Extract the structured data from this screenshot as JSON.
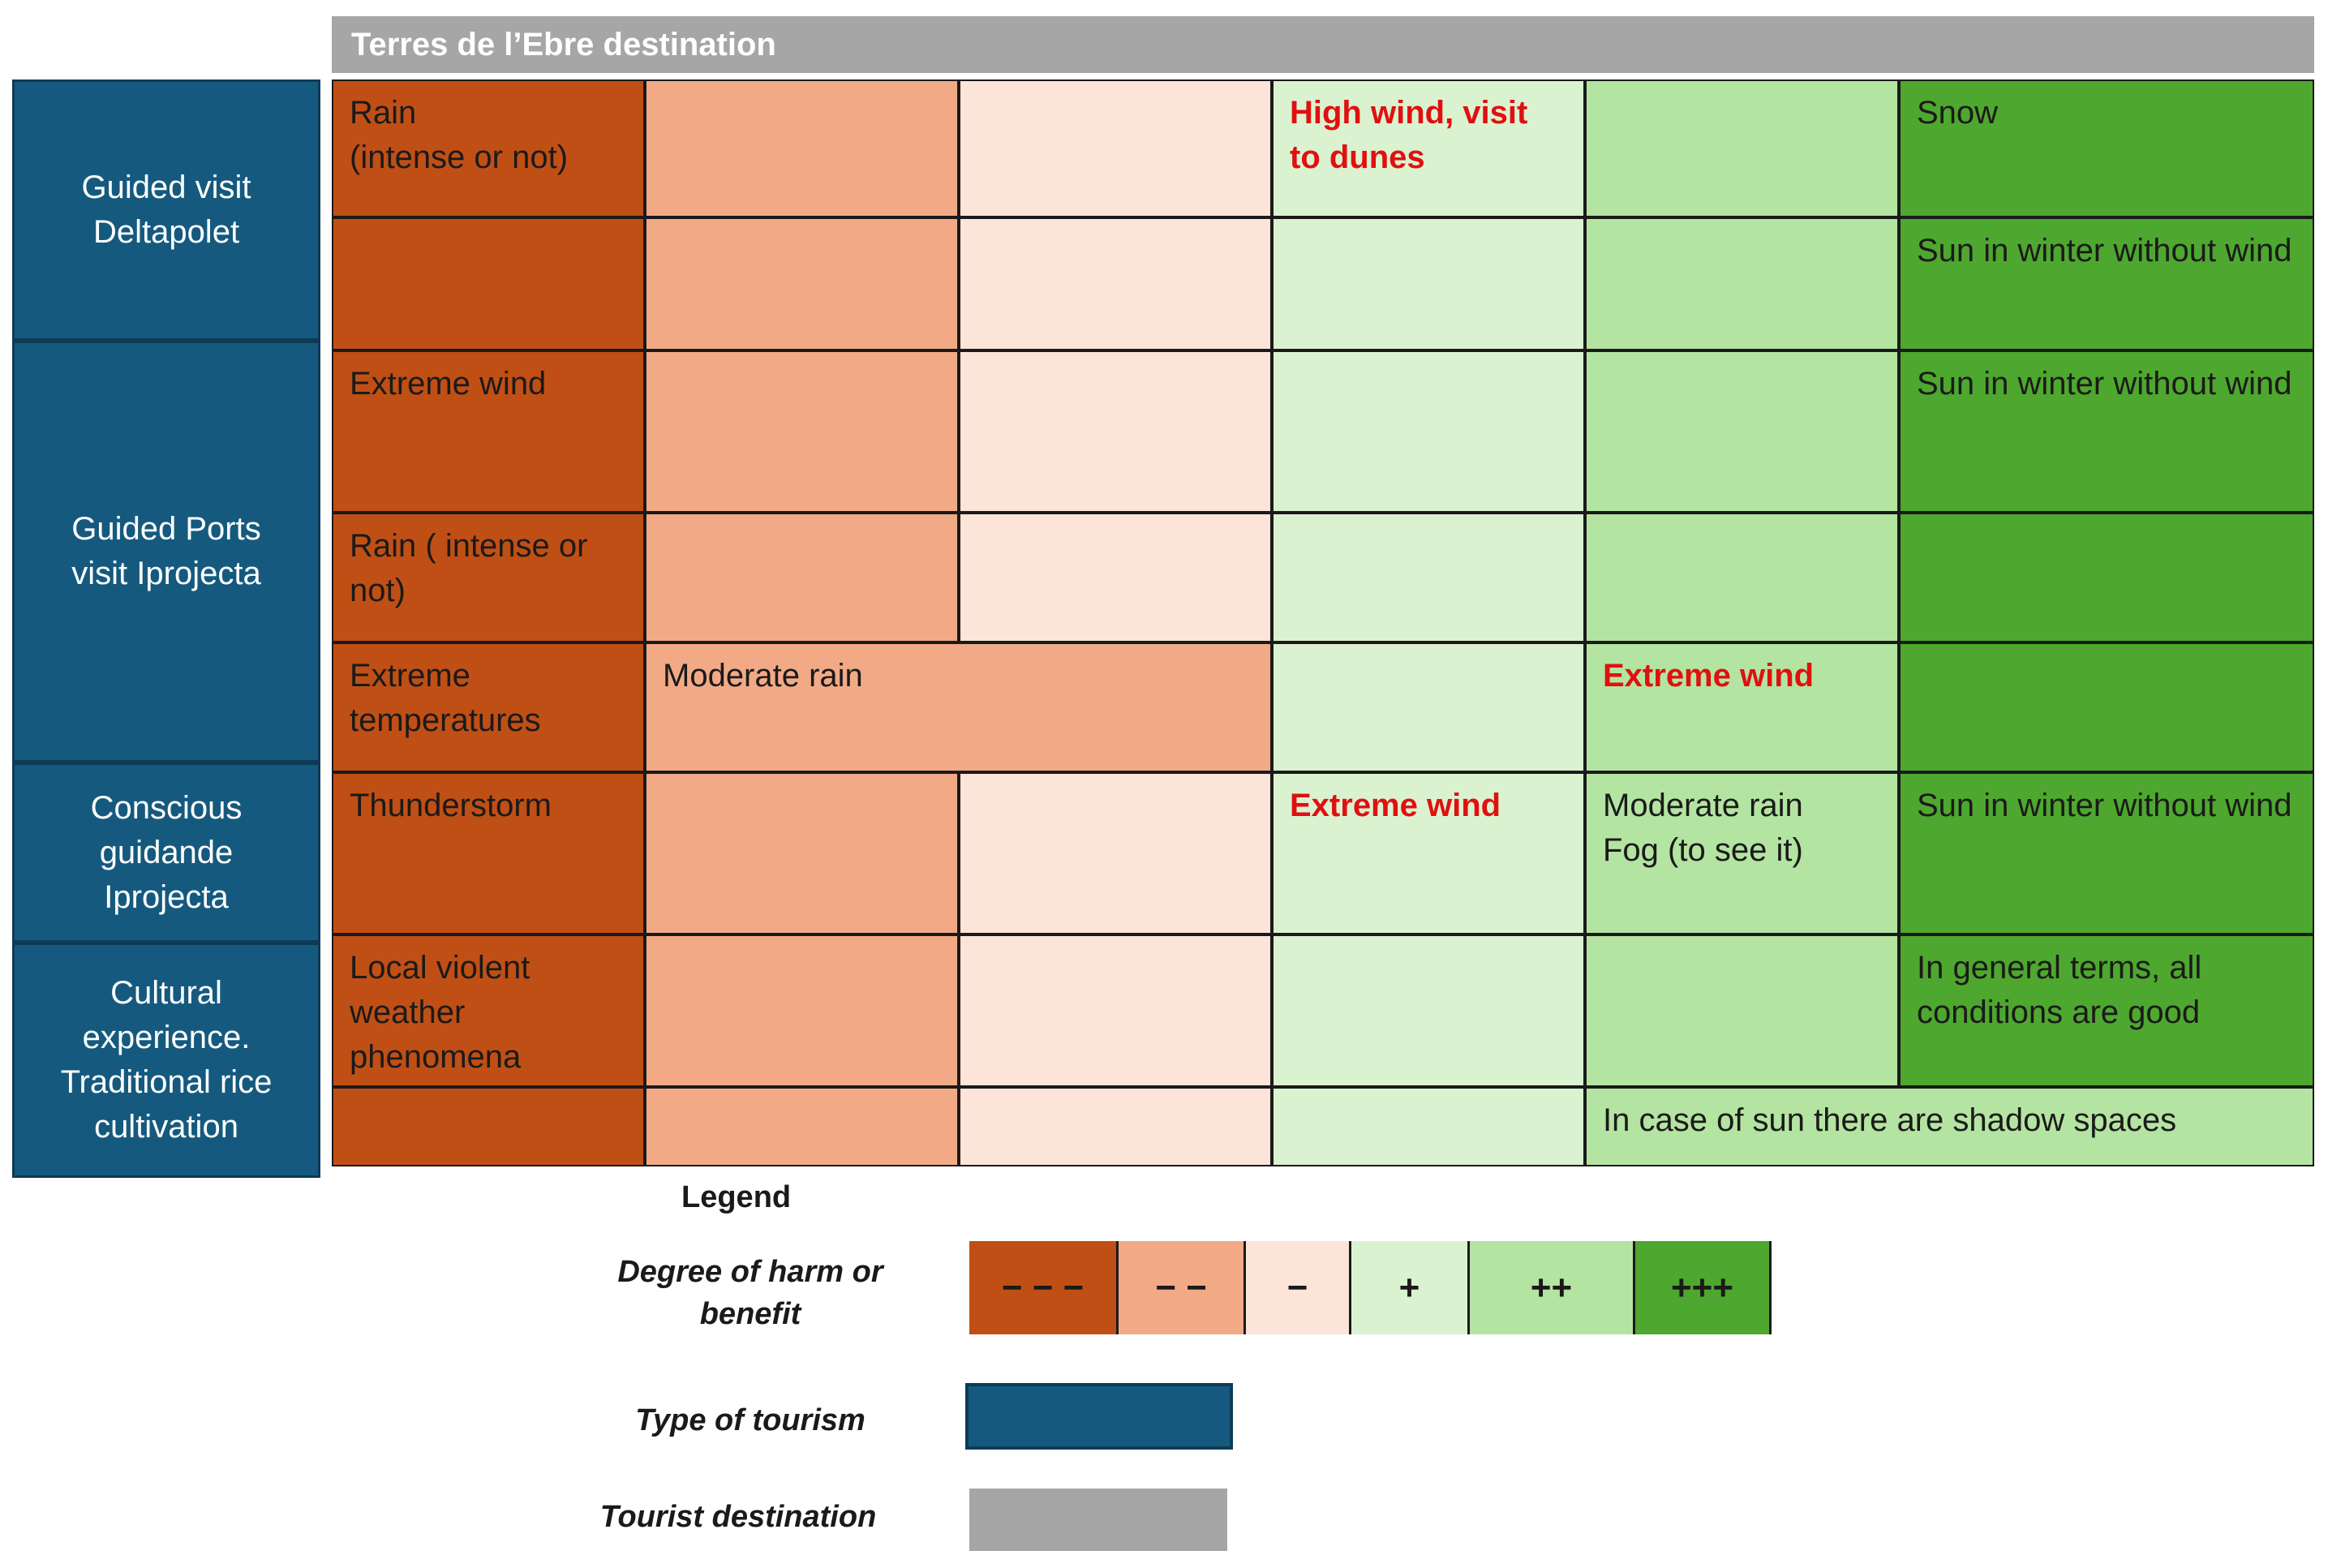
{
  "header": {
    "title": "Terres de l’Ebre destination"
  },
  "scale_colors": [
    "#c04f15",
    "#f2aa86",
    "#fce4d8",
    "#daf2d0",
    "#b4e4a1",
    "#4ea72e"
  ],
  "tourism_types": [
    {
      "id": "deltapolet",
      "label": "Guided visit Deltapolet"
    },
    {
      "id": "ports",
      "label": "Guided Ports visit Iprojecta"
    },
    {
      "id": "conscious",
      "label": "Conscious guidande Iprojecta"
    },
    {
      "id": "cultural",
      "label": "Cultural experience. Traditional rice cultivation"
    }
  ],
  "cells": {
    "r1_c1": "Rain\n(intense or not)",
    "r1_c4": "High wind, visit to dunes",
    "r1_c6": "Snow",
    "r2_c6": "Sun in winter without wind",
    "r3_c1": "Extreme wind",
    "r3_c6": "Sun in winter without wind",
    "r4_c1": "Rain ( intense or not)",
    "r5_c1": "Extreme temperatures",
    "r5_c2": "Moderate rain",
    "r5_c5": "Extreme wind",
    "r6_c1": "Thunderstorm",
    "r6_c4": "Extreme wind",
    "r6_c5": "Moderate rain\nFog (to see it)",
    "r6_c6": "Sun in winter without wind",
    "r7_c1": "Local violent weather phenomena",
    "r7_c6": "In general terms, all conditions are good",
    "r8_c5": "In case of sun  there are shadow spaces"
  },
  "legend": {
    "title": "Legend",
    "degree_label": "Degree of harm or benefit",
    "scale": [
      "− − −",
      "− −",
      "−",
      "+",
      "++",
      "+++"
    ],
    "type_label": "Type of tourism",
    "dest_label": "Tourist destination"
  }
}
